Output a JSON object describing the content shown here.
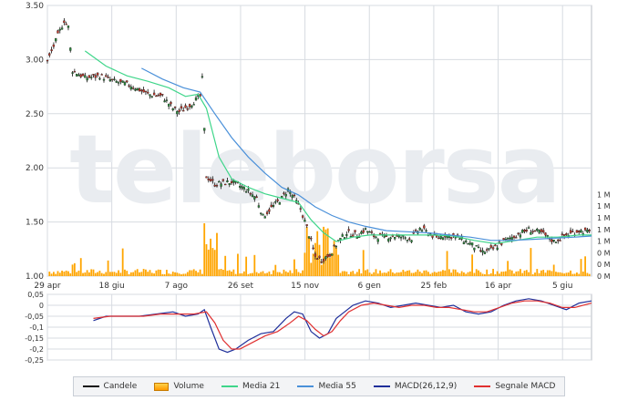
{
  "chart_data": [
    {
      "type": "candlestick",
      "title": "",
      "x_tick_labels": [
        "29 apr",
        "18 giu",
        "7 ago",
        "26 set",
        "15 nov",
        "6 gen",
        "25 feb",
        "16 apr",
        "5 giu"
      ],
      "y_tick_labels": [
        "1.00",
        "1.50",
        "2.00",
        "2.50",
        "3.00",
        "3.50"
      ],
      "ylim": [
        1.0,
        3.5
      ],
      "volume_axis_labels": [
        "0 M",
        "0 M",
        "0 M",
        "1 M",
        "1 M",
        "1 M",
        "1 M",
        "1 M"
      ],
      "grid": true,
      "watermark": "teleborsa",
      "price_close_points": [
        [
          0,
          2.98
        ],
        [
          5,
          3.22
        ],
        [
          8,
          3.36
        ],
        [
          10,
          3.3
        ],
        [
          12,
          2.9
        ],
        [
          18,
          2.83
        ],
        [
          25,
          2.85
        ],
        [
          32,
          2.8
        ],
        [
          40,
          2.76
        ],
        [
          48,
          2.68
        ],
        [
          55,
          2.66
        ],
        [
          60,
          2.55
        ],
        [
          63,
          2.52
        ],
        [
          68,
          2.58
        ],
        [
          73,
          2.66
        ],
        [
          74,
          2.82
        ],
        [
          75,
          2.35
        ],
        [
          76,
          1.92
        ],
        [
          80,
          1.85
        ],
        [
          88,
          1.87
        ],
        [
          95,
          1.8
        ],
        [
          100,
          1.72
        ],
        [
          103,
          1.55
        ],
        [
          107,
          1.63
        ],
        [
          112,
          1.72
        ],
        [
          115,
          1.8
        ],
        [
          118,
          1.72
        ],
        [
          121,
          1.62
        ],
        [
          124,
          1.45
        ],
        [
          126,
          1.32
        ],
        [
          128,
          1.18
        ],
        [
          131,
          1.15
        ],
        [
          135,
          1.2
        ],
        [
          139,
          1.32
        ],
        [
          143,
          1.4
        ],
        [
          148,
          1.38
        ],
        [
          152,
          1.43
        ],
        [
          156,
          1.37
        ],
        [
          160,
          1.36
        ],
        [
          165,
          1.37
        ],
        [
          170,
          1.36
        ],
        [
          174,
          1.35
        ],
        [
          178,
          1.44
        ],
        [
          182,
          1.4
        ],
        [
          186,
          1.35
        ],
        [
          190,
          1.38
        ],
        [
          196,
          1.36
        ],
        [
          202,
          1.3
        ],
        [
          208,
          1.22
        ],
        [
          213,
          1.25
        ],
        [
          218,
          1.32
        ],
        [
          224,
          1.38
        ],
        [
          230,
          1.43
        ],
        [
          236,
          1.4
        ],
        [
          242,
          1.32
        ],
        [
          248,
          1.38
        ],
        [
          254,
          1.42
        ],
        [
          260,
          1.4
        ]
      ],
      "series": [
        {
          "name": "Candele",
          "color": "#111111"
        },
        {
          "name": "Volume",
          "color": "#ffa500"
        },
        {
          "name": "Media 21",
          "color": "#3fd68a",
          "points": [
            [
              18,
              3.08
            ],
            [
              28,
              2.94
            ],
            [
              38,
              2.85
            ],
            [
              48,
              2.8
            ],
            [
              58,
              2.74
            ],
            [
              66,
              2.66
            ],
            [
              72,
              2.68
            ],
            [
              76,
              2.55
            ],
            [
              82,
              2.1
            ],
            [
              88,
              1.9
            ],
            [
              96,
              1.82
            ],
            [
              104,
              1.76
            ],
            [
              112,
              1.72
            ],
            [
              120,
              1.68
            ],
            [
              126,
              1.52
            ],
            [
              132,
              1.4
            ],
            [
              138,
              1.32
            ],
            [
              146,
              1.36
            ],
            [
              154,
              1.38
            ],
            [
              164,
              1.38
            ],
            [
              174,
              1.38
            ],
            [
              184,
              1.38
            ],
            [
              194,
              1.37
            ],
            [
              204,
              1.33
            ],
            [
              214,
              1.3
            ],
            [
              224,
              1.33
            ],
            [
              234,
              1.36
            ],
            [
              244,
              1.36
            ],
            [
              254,
              1.38
            ],
            [
              260,
              1.38
            ]
          ]
        },
        {
          "name": "Media 55",
          "color": "#4a90d9",
          "points": [
            [
              45,
              2.92
            ],
            [
              55,
              2.82
            ],
            [
              65,
              2.74
            ],
            [
              73,
              2.7
            ],
            [
              80,
              2.5
            ],
            [
              88,
              2.28
            ],
            [
              96,
              2.1
            ],
            [
              104,
              1.95
            ],
            [
              112,
              1.82
            ],
            [
              120,
              1.75
            ],
            [
              128,
              1.64
            ],
            [
              136,
              1.56
            ],
            [
              144,
              1.5
            ],
            [
              152,
              1.46
            ],
            [
              162,
              1.42
            ],
            [
              172,
              1.41
            ],
            [
              182,
              1.4
            ],
            [
              192,
              1.38
            ],
            [
              202,
              1.36
            ],
            [
              212,
              1.33
            ],
            [
              222,
              1.33
            ],
            [
              232,
              1.34
            ],
            [
              242,
              1.35
            ],
            [
              252,
              1.36
            ],
            [
              260,
              1.37
            ]
          ]
        }
      ]
    },
    {
      "type": "line",
      "title": "",
      "y_tick_labels": [
        "0,05",
        "0",
        "-0,05",
        "-0,1",
        "-0,15",
        "-0,2",
        "-0,25"
      ],
      "ylim": [
        -0.25,
        0.05
      ],
      "grid": true,
      "series": [
        {
          "name": "MACD(26,12,9)",
          "color": "#1f2f9a",
          "points": [
            [
              22,
              -0.07
            ],
            [
              28,
              -0.05
            ],
            [
              36,
              -0.05
            ],
            [
              44,
              -0.05
            ],
            [
              52,
              -0.04
            ],
            [
              60,
              -0.03
            ],
            [
              66,
              -0.05
            ],
            [
              72,
              -0.04
            ],
            [
              75,
              -0.02
            ],
            [
              78,
              -0.1
            ],
            [
              82,
              -0.2
            ],
            [
              86,
              -0.215
            ],
            [
              90,
              -0.2
            ],
            [
              96,
              -0.16
            ],
            [
              102,
              -0.13
            ],
            [
              108,
              -0.12
            ],
            [
              114,
              -0.06
            ],
            [
              118,
              -0.03
            ],
            [
              122,
              -0.04
            ],
            [
              126,
              -0.12
            ],
            [
              130,
              -0.15
            ],
            [
              134,
              -0.13
            ],
            [
              138,
              -0.06
            ],
            [
              142,
              -0.03
            ],
            [
              146,
              0.0
            ],
            [
              152,
              0.02
            ],
            [
              158,
              0.01
            ],
            [
              164,
              -0.01
            ],
            [
              170,
              0.0
            ],
            [
              176,
              0.01
            ],
            [
              182,
              0.0
            ],
            [
              188,
              -0.01
            ],
            [
              194,
              0.0
            ],
            [
              200,
              -0.03
            ],
            [
              206,
              -0.04
            ],
            [
              212,
              -0.03
            ],
            [
              218,
              0.0
            ],
            [
              224,
              0.02
            ],
            [
              230,
              0.03
            ],
            [
              236,
              0.02
            ],
            [
              242,
              0.0
            ],
            [
              248,
              -0.02
            ],
            [
              254,
              0.01
            ],
            [
              260,
              0.02
            ]
          ]
        },
        {
          "name": "Segnale MACD",
          "color": "#e03030",
          "points": [
            [
              22,
              -0.06
            ],
            [
              30,
              -0.05
            ],
            [
              38,
              -0.05
            ],
            [
              46,
              -0.05
            ],
            [
              54,
              -0.04
            ],
            [
              62,
              -0.04
            ],
            [
              70,
              -0.04
            ],
            [
              76,
              -0.03
            ],
            [
              80,
              -0.08
            ],
            [
              84,
              -0.16
            ],
            [
              88,
              -0.2
            ],
            [
              92,
              -0.2
            ],
            [
              98,
              -0.17
            ],
            [
              104,
              -0.14
            ],
            [
              110,
              -0.12
            ],
            [
              116,
              -0.08
            ],
            [
              120,
              -0.05
            ],
            [
              124,
              -0.07
            ],
            [
              128,
              -0.11
            ],
            [
              132,
              -0.14
            ],
            [
              136,
              -0.12
            ],
            [
              140,
              -0.07
            ],
            [
              144,
              -0.03
            ],
            [
              150,
              0.0
            ],
            [
              156,
              0.01
            ],
            [
              162,
              0.0
            ],
            [
              168,
              -0.01
            ],
            [
              174,
              0.0
            ],
            [
              180,
              0.0
            ],
            [
              186,
              -0.01
            ],
            [
              192,
              -0.01
            ],
            [
              198,
              -0.02
            ],
            [
              204,
              -0.03
            ],
            [
              210,
              -0.03
            ],
            [
              216,
              -0.01
            ],
            [
              222,
              0.01
            ],
            [
              228,
              0.02
            ],
            [
              234,
              0.02
            ],
            [
              240,
              0.01
            ],
            [
              246,
              -0.01
            ],
            [
              252,
              -0.01
            ],
            [
              260,
              0.01
            ]
          ]
        }
      ]
    }
  ]
}
